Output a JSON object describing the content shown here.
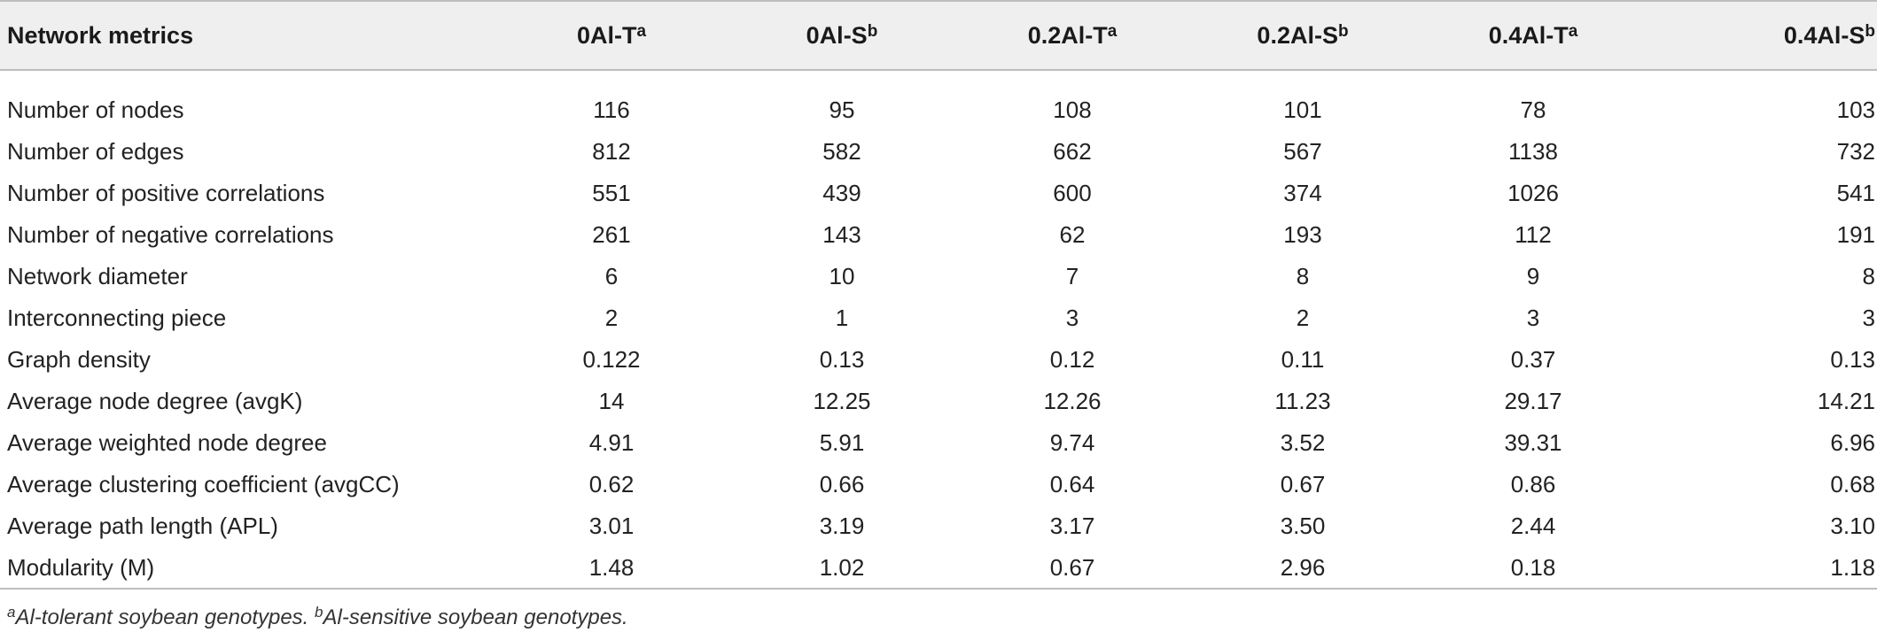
{
  "table": {
    "header": {
      "metric_label": "Network metrics",
      "columns": [
        {
          "label": "0Al-T",
          "sup": "a"
        },
        {
          "label": "0Al-S",
          "sup": "b"
        },
        {
          "label": "0.2Al-T",
          "sup": "a"
        },
        {
          "label": "0.2Al-S",
          "sup": "b"
        },
        {
          "label": "0.4Al-T",
          "sup": "a"
        },
        {
          "label": "0.4Al-S",
          "sup": "b"
        }
      ]
    },
    "rows": [
      {
        "metric": "Number of nodes",
        "values": [
          "116",
          "95",
          "108",
          "101",
          "78",
          "103"
        ]
      },
      {
        "metric": "Number of edges",
        "values": [
          "812",
          "582",
          "662",
          "567",
          "1138",
          "732"
        ]
      },
      {
        "metric": "Number of positive correlations",
        "values": [
          "551",
          "439",
          "600",
          "374",
          "1026",
          "541"
        ]
      },
      {
        "metric": "Number of negative correlations",
        "values": [
          "261",
          "143",
          "62",
          "193",
          "112",
          "191"
        ]
      },
      {
        "metric": "Network diameter",
        "values": [
          "6",
          "10",
          "7",
          "8",
          "9",
          "8"
        ]
      },
      {
        "metric": "Interconnecting piece",
        "values": [
          "2",
          "1",
          "3",
          "2",
          "3",
          "3"
        ]
      },
      {
        "metric": "Graph density",
        "values": [
          "0.122",
          "0.13",
          "0.12",
          "0.11",
          "0.37",
          "0.13"
        ]
      },
      {
        "metric": "Average node degree (avgK)",
        "values": [
          "14",
          "12.25",
          "12.26",
          "11.23",
          "29.17",
          "14.21"
        ]
      },
      {
        "metric": "Average weighted node degree",
        "values": [
          "4.91",
          "5.91",
          "9.74",
          "3.52",
          "39.31",
          "6.96"
        ]
      },
      {
        "metric": "Average clustering coefficient (avgCC)",
        "values": [
          "0.62",
          "0.66",
          "0.64",
          "0.67",
          "0.86",
          "0.68"
        ]
      },
      {
        "metric": "Average path length (APL)",
        "values": [
          "3.01",
          "3.19",
          "3.17",
          "3.50",
          "2.44",
          "3.10"
        ]
      },
      {
        "metric": "Modularity (M)",
        "values": [
          "1.48",
          "1.02",
          "0.67",
          "2.96",
          "0.18",
          "1.18"
        ]
      }
    ]
  },
  "footnote": {
    "a_sup": "a",
    "a_text": "Al-tolerant soybean genotypes.",
    "b_sup": "b",
    "b_text": "Al-sensitive soybean genotypes."
  }
}
